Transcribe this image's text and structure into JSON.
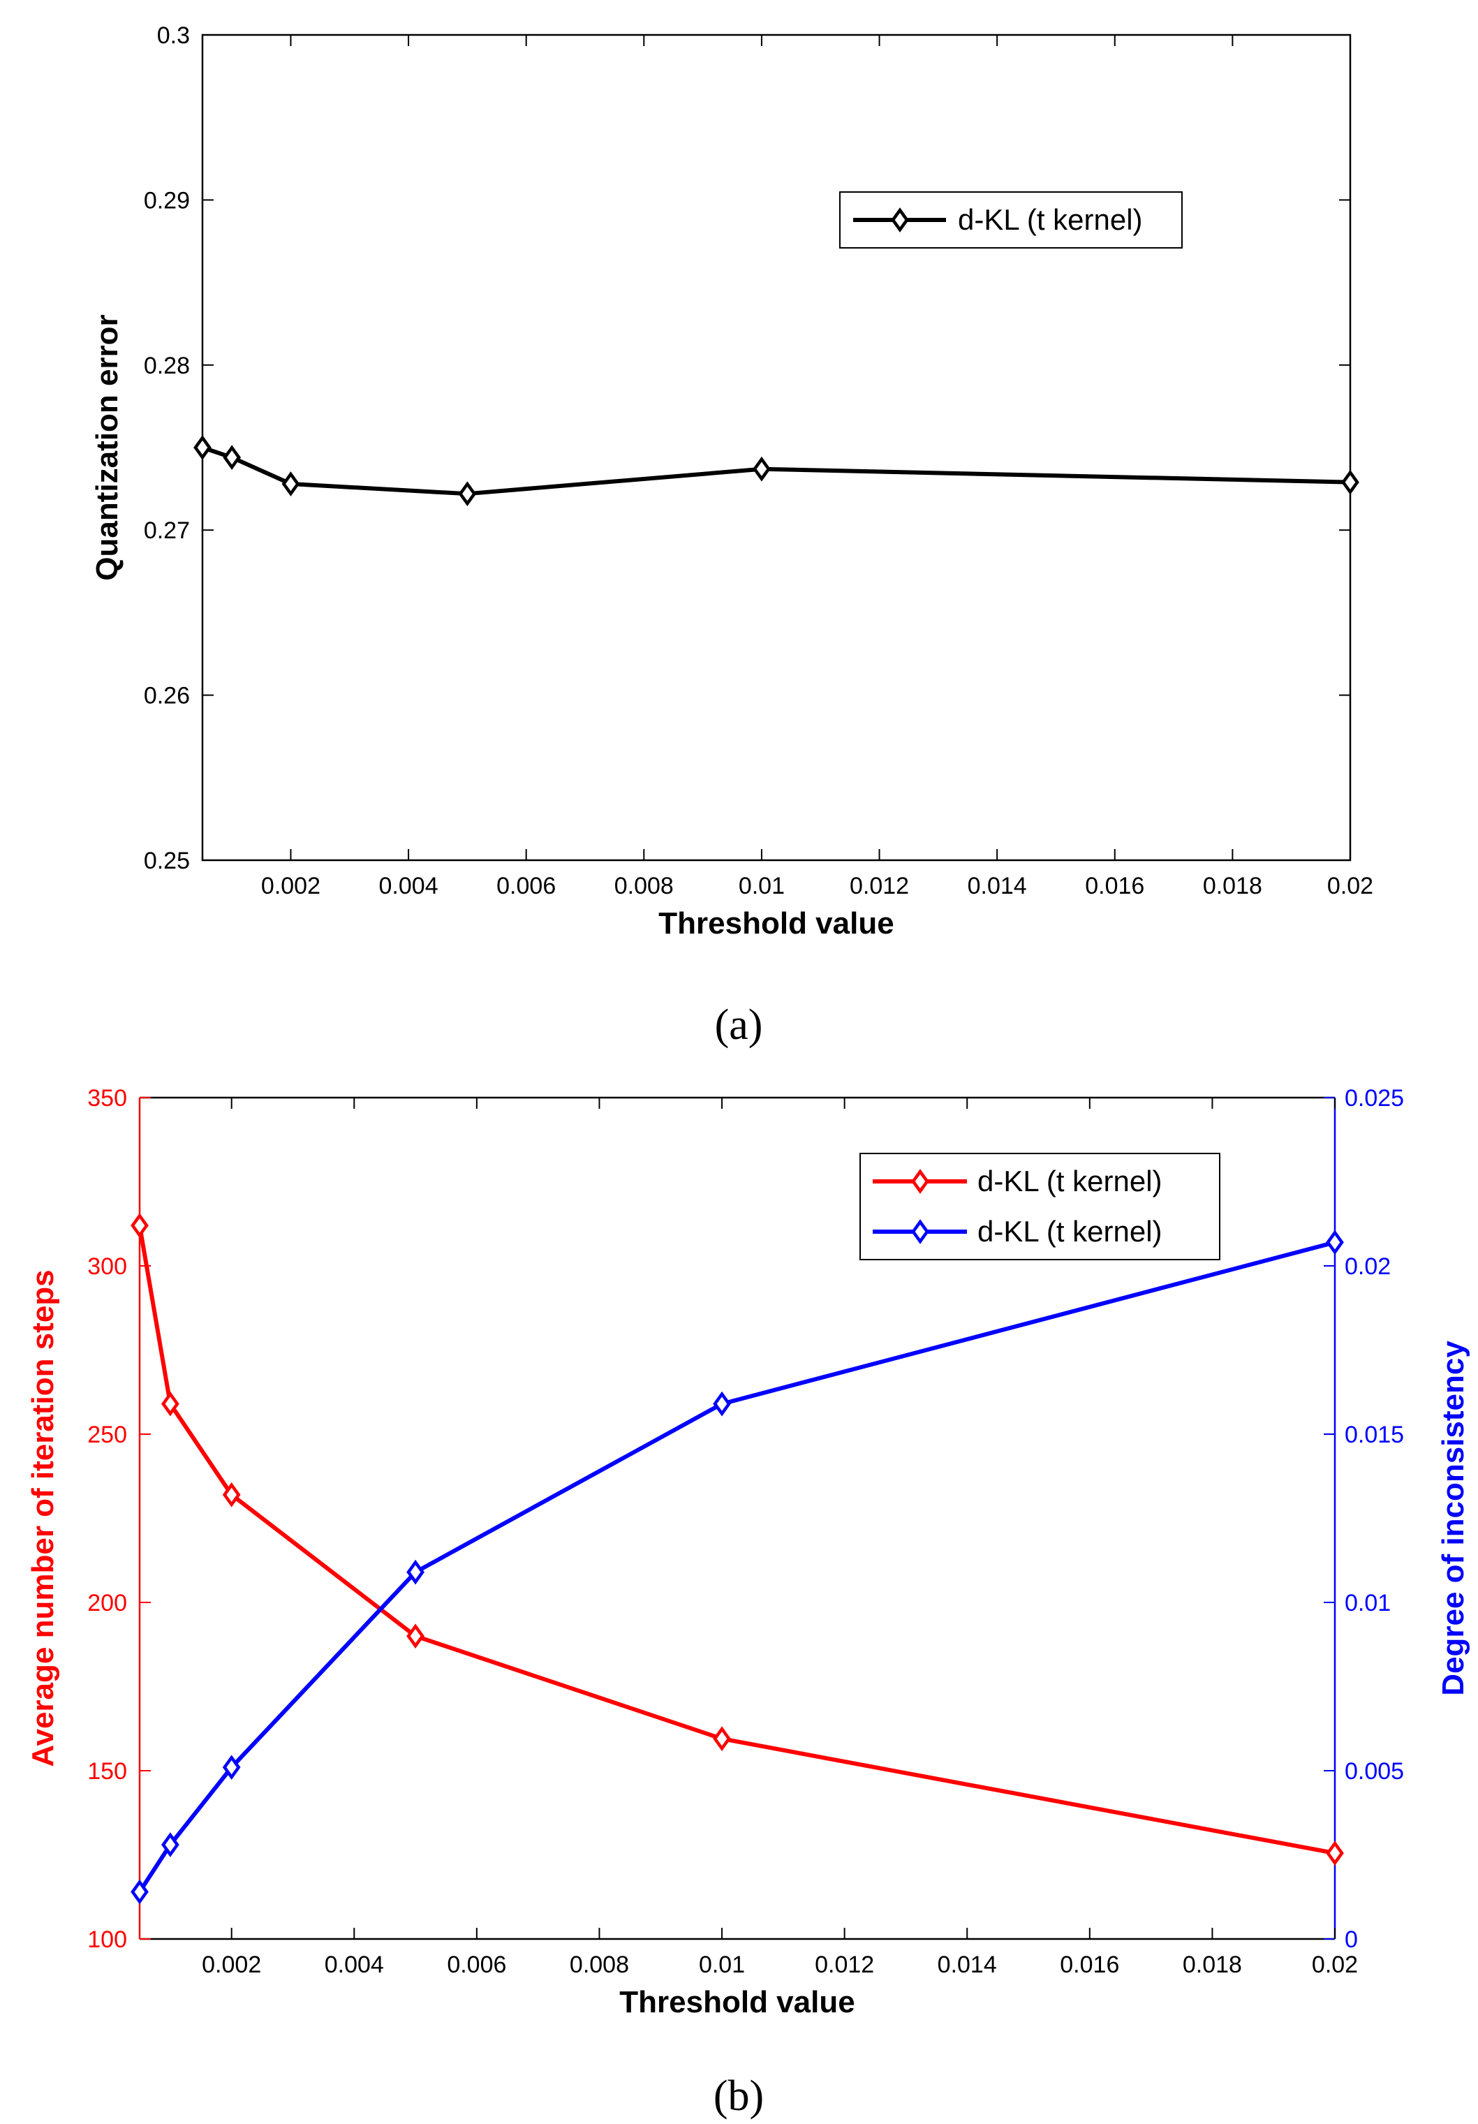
{
  "chart_data": [
    {
      "panel": "a",
      "panel_label": "(a)",
      "type": "line",
      "xlabel": "Threshold value",
      "ylabel": "Quantization error",
      "xlim": [
        0.0005,
        0.02
      ],
      "ylim": [
        0.25,
        0.3
      ],
      "xticks": [
        0.002,
        0.004,
        0.006,
        0.008,
        0.01,
        0.012,
        0.014,
        0.016,
        0.018,
        0.02
      ],
      "xtick_labels": [
        "0.002",
        "0.004",
        "0.006",
        "0.008",
        "0.01",
        "0.012",
        "0.014",
        "0.016",
        "0.018",
        "0.02"
      ],
      "yticks": [
        0.25,
        0.26,
        0.27,
        0.28,
        0.29,
        0.3
      ],
      "ytick_labels": [
        "0.25",
        "0.26",
        "0.27",
        "0.28",
        "0.29",
        "0.3"
      ],
      "legend_position": "top-right",
      "series": [
        {
          "name": "d-KL (t kernel)",
          "color": "#000000",
          "marker": "diamond",
          "x": [
            0.0005,
            0.001,
            0.002,
            0.005,
            0.01,
            0.02
          ],
          "y": [
            0.275,
            0.2744,
            0.2728,
            0.2722,
            0.2737,
            0.2729
          ]
        }
      ]
    },
    {
      "panel": "b",
      "panel_label": "(b)",
      "type": "line",
      "xlabel": "Threshold value",
      "ylabel_left": "Average number of iteration steps",
      "ylabel_right": "Degree of inconsistency",
      "xlim": [
        0.0005,
        0.02
      ],
      "ylim_left": [
        100,
        350
      ],
      "ylim_right": [
        0,
        0.025
      ],
      "xticks": [
        0.002,
        0.004,
        0.006,
        0.008,
        0.01,
        0.012,
        0.014,
        0.016,
        0.018,
        0.02
      ],
      "xtick_labels": [
        "0.002",
        "0.004",
        "0.006",
        "0.008",
        "0.01",
        "0.012",
        "0.014",
        "0.016",
        "0.018",
        "0.02"
      ],
      "yticks_left": [
        100,
        150,
        200,
        250,
        300,
        350
      ],
      "ytick_labels_left": [
        "100",
        "150",
        "200",
        "250",
        "300",
        "350"
      ],
      "yticks_right": [
        0,
        0.005,
        0.01,
        0.015,
        0.02,
        0.025
      ],
      "ytick_labels_right": [
        "0",
        "0.005",
        "0.01",
        "0.015",
        "0.02",
        "0.025"
      ],
      "legend_position": "top-right",
      "series": [
        {
          "name": "d-KL (t kernel)",
          "axis": "left",
          "color": "#ff0000",
          "marker": "diamond",
          "x": [
            0.0005,
            0.001,
            0.002,
            0.005,
            0.01,
            0.02
          ],
          "y": [
            312,
            259,
            232,
            190,
            159.5,
            125.5
          ]
        },
        {
          "name": "d-KL (t kernel)",
          "axis": "right",
          "color": "#0000ff",
          "marker": "diamond",
          "x": [
            0.0005,
            0.001,
            0.002,
            0.005,
            0.01,
            0.02
          ],
          "y": [
            0.0014,
            0.0028,
            0.0051,
            0.0109,
            0.0159,
            0.0207
          ]
        }
      ]
    }
  ]
}
